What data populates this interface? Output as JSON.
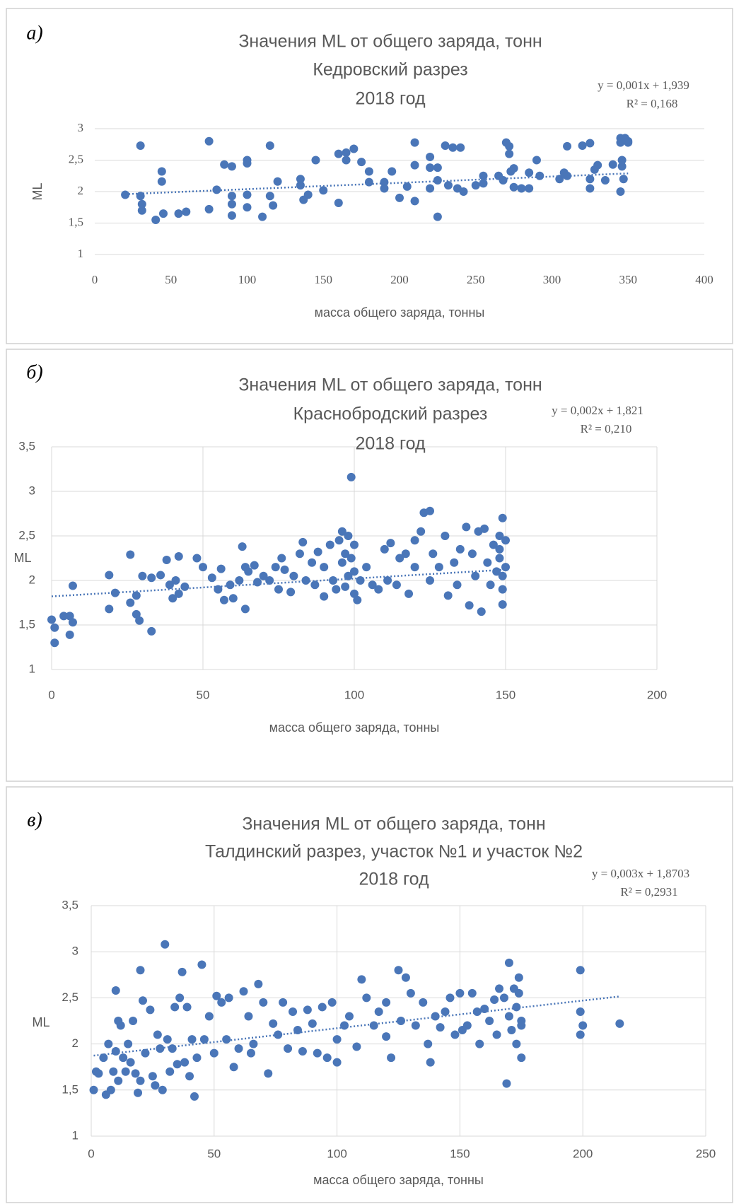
{
  "chart_data": [
    {
      "type": "scatter",
      "label": "а)",
      "title": [
        "Значения ML от общего заряда, тонн",
        "Кедровский разрез",
        "2018 год"
      ],
      "equation": "y = 0,001x + 1,939",
      "r_squared": "R² = 0,168",
      "xlabel": "масса общего заряда, тонны",
      "ylabel": "ML",
      "color": "#4a76b8",
      "grid": "y",
      "xlim": [
        0,
        400
      ],
      "xticks": [
        0,
        50,
        100,
        150,
        200,
        250,
        300,
        350,
        400
      ],
      "ylim": [
        1,
        3
      ],
      "yticks": [
        1,
        {
          "value": 1.5,
          "label": "1,5"
        },
        2,
        {
          "value": 2.5,
          "label": "2,5"
        },
        3
      ],
      "trendline": {
        "slope": 0.001,
        "intercept": 1.939
      },
      "x": [
        20,
        30,
        30,
        31,
        31,
        40,
        44,
        44,
        45,
        55,
        60,
        75,
        75,
        80,
        85,
        90,
        90,
        90,
        90,
        100,
        100,
        100,
        100,
        110,
        115,
        115,
        117,
        120,
        135,
        135,
        137,
        140,
        145,
        150,
        160,
        160,
        165,
        165,
        170,
        175,
        180,
        180,
        190,
        190,
        195,
        200,
        205,
        210,
        210,
        210,
        220,
        220,
        220,
        225,
        225,
        225,
        230,
        232,
        235,
        238,
        240,
        242,
        250,
        255,
        255,
        265,
        268,
        270,
        272,
        272,
        273,
        275,
        275,
        280,
        285,
        285,
        290,
        292,
        305,
        308,
        310,
        310,
        320,
        325,
        325,
        325,
        328,
        330,
        335,
        340,
        345,
        345,
        346,
        346,
        347,
        345,
        348,
        350,
        350
      ],
      "values": [
        1.95,
        2.73,
        1.93,
        1.8,
        1.7,
        1.55,
        2.32,
        2.16,
        1.65,
        1.65,
        1.68,
        2.8,
        1.72,
        2.03,
        2.43,
        2.4,
        1.93,
        1.8,
        1.62,
        2.5,
        2.45,
        1.95,
        1.75,
        1.6,
        2.73,
        1.93,
        1.78,
        2.16,
        2.2,
        2.1,
        1.87,
        1.95,
        2.5,
        2.02,
        2.6,
        1.82,
        2.62,
        2.5,
        2.68,
        2.47,
        2.32,
        2.15,
        2.15,
        2.05,
        2.32,
        1.9,
        2.08,
        2.78,
        2.42,
        1.85,
        2.55,
        2.38,
        2.05,
        2.38,
        2.18,
        1.6,
        2.73,
        2.1,
        2.7,
        2.05,
        2.7,
        2.0,
        2.1,
        2.25,
        2.13,
        2.25,
        2.18,
        2.78,
        2.6,
        2.72,
        2.32,
        2.37,
        2.07,
        2.05,
        2.3,
        2.05,
        2.5,
        2.25,
        2.2,
        2.3,
        2.72,
        2.25,
        2.73,
        2.77,
        2.2,
        2.05,
        2.35,
        2.42,
        2.18,
        2.43,
        2.85,
        2.78,
        2.5,
        2.4,
        2.2,
        2.0,
        2.85,
        2.8,
        2.78
      ]
    },
    {
      "type": "scatter",
      "label": "б)",
      "title": [
        "Значения ML от общего заряда, тонн",
        "Краснобродский разрез",
        "2018 год"
      ],
      "equation": "y = 0,002x + 1,821",
      "r_squared": "R² = 0,210",
      "xlabel": "масса общего заряда, тонны",
      "ylabel": "ML",
      "color": "#4a76b8",
      "grid": "both",
      "xlim": [
        0,
        200
      ],
      "xticks": [
        0,
        50,
        100,
        150,
        200
      ],
      "ylim": [
        1,
        3.5
      ],
      "yticks": [
        1,
        {
          "value": 1.5,
          "label": "1,5"
        },
        2,
        {
          "value": 2.5,
          "label": "2,5"
        },
        3,
        {
          "value": 3.5,
          "label": "3,5"
        }
      ],
      "trendline": {
        "slope": 0.002,
        "intercept": 1.821
      },
      "x": [
        0,
        1,
        1,
        4,
        6,
        6,
        7,
        7,
        19,
        19,
        21,
        26,
        26,
        28,
        28,
        29,
        30,
        33,
        33,
        36,
        38,
        39,
        40,
        41,
        42,
        42,
        44,
        48,
        50,
        53,
        55,
        56,
        57,
        59,
        60,
        62,
        63,
        64,
        64,
        65,
        67,
        68,
        70,
        72,
        74,
        75,
        76,
        77,
        79,
        80,
        82,
        83,
        84,
        86,
        87,
        88,
        90,
        90,
        92,
        93,
        94,
        95,
        96,
        96,
        97,
        97,
        98,
        98,
        99,
        99,
        100,
        100,
        100,
        101,
        102,
        104,
        106,
        108,
        110,
        111,
        112,
        114,
        115,
        117,
        118,
        120,
        120,
        122,
        123,
        125,
        125,
        126,
        128,
        130,
        131,
        133,
        134,
        135,
        137,
        138,
        139,
        140,
        141,
        142,
        143,
        144,
        145,
        146,
        147,
        148,
        148,
        148,
        149,
        149,
        149,
        149,
        150,
        150
      ],
      "values": [
        1.56,
        1.47,
        1.3,
        1.6,
        1.6,
        1.39,
        1.53,
        1.94,
        2.06,
        1.68,
        1.86,
        1.75,
        2.29,
        1.83,
        1.62,
        1.55,
        2.05,
        2.03,
        1.43,
        2.06,
        2.23,
        1.95,
        1.8,
        2.0,
        2.27,
        1.85,
        1.93,
        2.25,
        2.15,
        2.03,
        1.9,
        2.13,
        1.78,
        1.95,
        1.8,
        2.0,
        2.38,
        1.68,
        2.15,
        2.1,
        2.17,
        1.98,
        2.05,
        2.0,
        2.15,
        1.9,
        2.25,
        2.12,
        1.87,
        2.05,
        2.3,
        2.43,
        2.0,
        2.2,
        1.95,
        2.32,
        2.15,
        1.82,
        2.4,
        2.0,
        1.9,
        2.45,
        2.55,
        2.2,
        2.3,
        1.93,
        2.5,
        2.05,
        3.16,
        2.25,
        2.1,
        1.85,
        2.4,
        1.78,
        2.0,
        2.15,
        1.95,
        1.9,
        2.35,
        2.0,
        2.42,
        1.95,
        2.25,
        2.3,
        1.85,
        2.45,
        2.15,
        2.55,
        2.76,
        2.78,
        2.0,
        2.3,
        2.15,
        2.5,
        1.83,
        2.2,
        1.95,
        2.35,
        2.6,
        1.72,
        2.3,
        2.05,
        2.55,
        1.65,
        2.58,
        2.2,
        1.95,
        2.4,
        2.1,
        2.5,
        2.35,
        2.25,
        2.7,
        2.05,
        1.9,
        1.73,
        2.45,
        2.15
      ]
    },
    {
      "type": "scatter",
      "label": "в)",
      "title": [
        "Значения ML от общего заряда, тонн",
        "Талдинский разрез, участок №1 и участок №2",
        "2018 год"
      ],
      "equation": "y = 0,003x + 1,8703",
      "r_squared": "R² = 0,2931",
      "xlabel": "масса общего заряда, тонны",
      "ylabel": "ML",
      "color": "#4a76b8",
      "grid": "both",
      "xlim": [
        0,
        250
      ],
      "xticks": [
        0,
        50,
        100,
        150,
        200,
        250
      ],
      "ylim": [
        1,
        3.5
      ],
      "yticks": [
        1,
        {
          "value": 1.5,
          "label": "1,5"
        },
        2,
        {
          "value": 2.5,
          "label": "2,5"
        },
        3,
        {
          "value": 3.5,
          "label": "3,5"
        }
      ],
      "trendline": {
        "slope": 0.003,
        "intercept": 1.8703
      },
      "x": [
        1,
        2,
        3,
        5,
        6,
        7,
        8,
        9,
        10,
        10,
        11,
        11,
        12,
        13,
        14,
        15,
        16,
        17,
        18,
        19,
        20,
        20,
        21,
        22,
        24,
        25,
        26,
        27,
        28,
        29,
        30,
        31,
        32,
        33,
        34,
        35,
        36,
        37,
        38,
        39,
        40,
        41,
        42,
        43,
        45,
        46,
        48,
        50,
        51,
        53,
        55,
        56,
        58,
        60,
        62,
        64,
        65,
        66,
        68,
        70,
        72,
        74,
        76,
        78,
        80,
        82,
        84,
        86,
        88,
        90,
        92,
        94,
        96,
        98,
        100,
        100,
        103,
        105,
        108,
        110,
        112,
        115,
        117,
        120,
        120,
        122,
        125,
        126,
        128,
        130,
        132,
        135,
        137,
        138,
        140,
        142,
        144,
        146,
        148,
        150,
        151,
        153,
        155,
        157,
        158,
        160,
        162,
        164,
        165,
        166,
        168,
        169,
        170,
        170,
        171,
        172,
        173,
        173,
        174,
        174,
        175,
        175,
        175,
        199,
        199,
        200,
        199,
        215
      ],
      "values": [
        1.5,
        1.7,
        1.68,
        1.85,
        1.45,
        2.0,
        1.5,
        1.7,
        2.58,
        1.92,
        2.25,
        1.6,
        2.2,
        1.85,
        1.7,
        2.0,
        1.8,
        2.25,
        1.68,
        1.47,
        2.8,
        1.6,
        2.47,
        1.9,
        2.37,
        1.65,
        1.55,
        2.1,
        1.95,
        1.5,
        3.08,
        2.05,
        1.7,
        1.95,
        2.4,
        1.78,
        2.5,
        2.78,
        1.8,
        2.4,
        1.65,
        2.05,
        1.43,
        1.85,
        2.86,
        2.05,
        2.3,
        1.9,
        2.52,
        2.45,
        2.05,
        2.5,
        1.75,
        1.95,
        2.57,
        2.3,
        1.9,
        2.0,
        2.65,
        2.45,
        1.68,
        2.22,
        2.1,
        2.45,
        1.95,
        2.35,
        2.15,
        1.92,
        2.37,
        2.22,
        1.9,
        2.4,
        1.85,
        2.45,
        1.8,
        2.05,
        2.2,
        2.3,
        1.97,
        2.7,
        2.5,
        2.2,
        2.35,
        2.08,
        2.45,
        1.85,
        2.8,
        2.25,
        2.72,
        2.55,
        2.2,
        2.45,
        2.0,
        1.8,
        2.3,
        2.18,
        2.35,
        2.5,
        2.1,
        2.55,
        2.15,
        2.2,
        2.55,
        2.35,
        2.0,
        2.38,
        2.25,
        2.48,
        2.1,
        2.6,
        2.5,
        1.57,
        2.88,
        2.3,
        2.15,
        2.6,
        2.4,
        2.0,
        2.72,
        2.55,
        2.25,
        2.2,
        1.85,
        2.8,
        2.35,
        2.2,
        2.1,
        2.22
      ]
    }
  ]
}
